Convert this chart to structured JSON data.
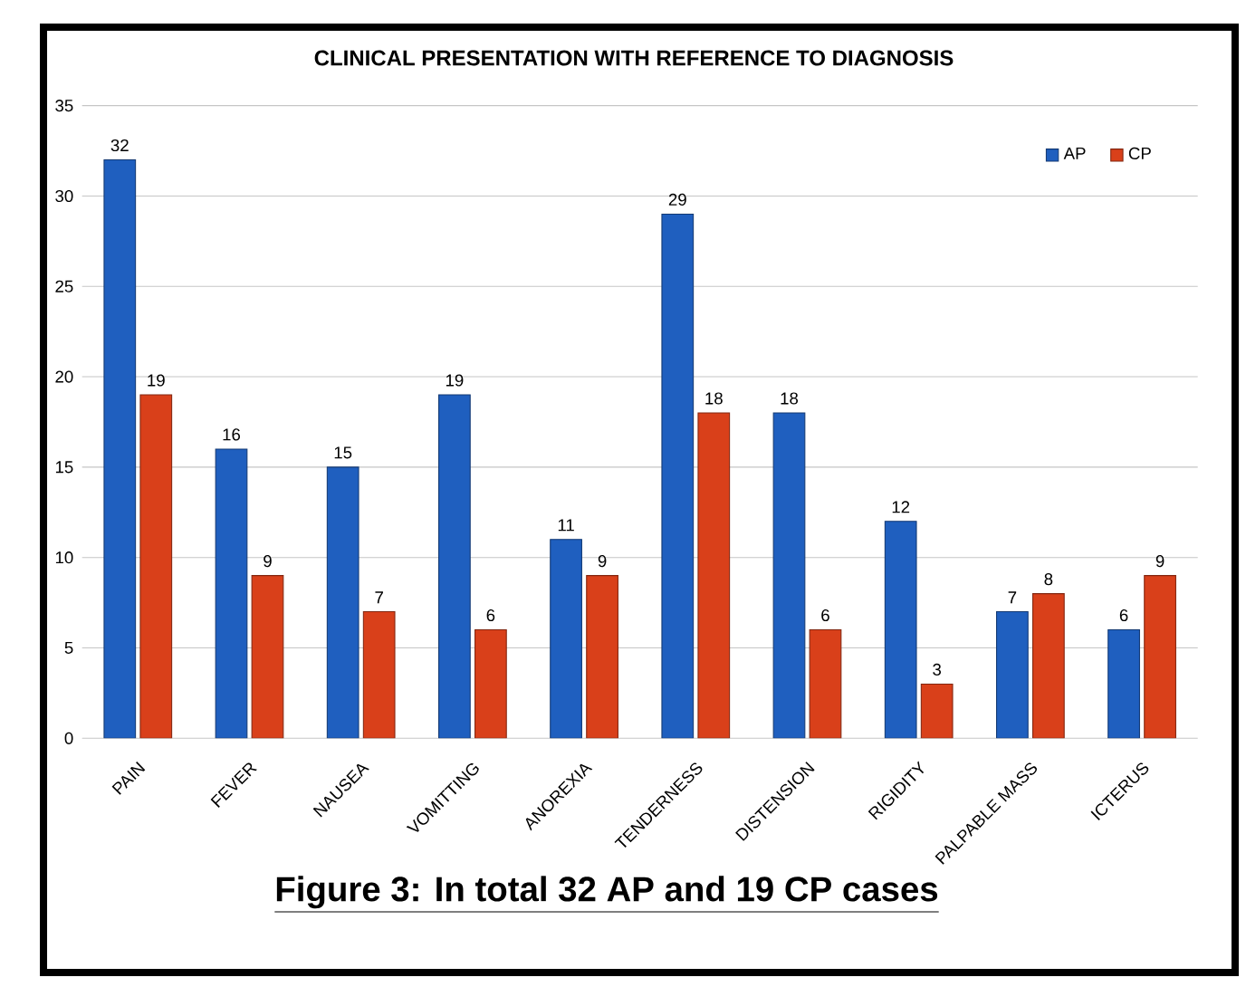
{
  "chart_data": {
    "type": "bar",
    "title": "CLINICAL PRESENTATION WITH REFERENCE TO DIAGNOSIS",
    "categories": [
      "PAIN",
      "FEVER",
      "NAUSEA",
      "VOMITTING",
      "ANOREXIA",
      "TENDERNESS",
      "DISTENSION",
      "RIGIDITY",
      "PALPABLE MASS",
      "ICTERUS"
    ],
    "series": [
      {
        "name": "AP",
        "color": "#1f5fbf",
        "values": [
          32,
          16,
          15,
          19,
          11,
          29,
          18,
          12,
          7,
          6
        ]
      },
      {
        "name": "CP",
        "color": "#d9401a",
        "values": [
          19,
          9,
          7,
          6,
          9,
          18,
          6,
          3,
          8,
          9
        ]
      }
    ],
    "ylim": [
      0,
      35
    ],
    "yticks": [
      0,
      5,
      10,
      15,
      20,
      25,
      30,
      35
    ],
    "grid": "y",
    "legend": "top right",
    "data_labels": true,
    "annotations": [
      "Figure 3: In total 32 AP and 19 CP cases"
    ]
  }
}
